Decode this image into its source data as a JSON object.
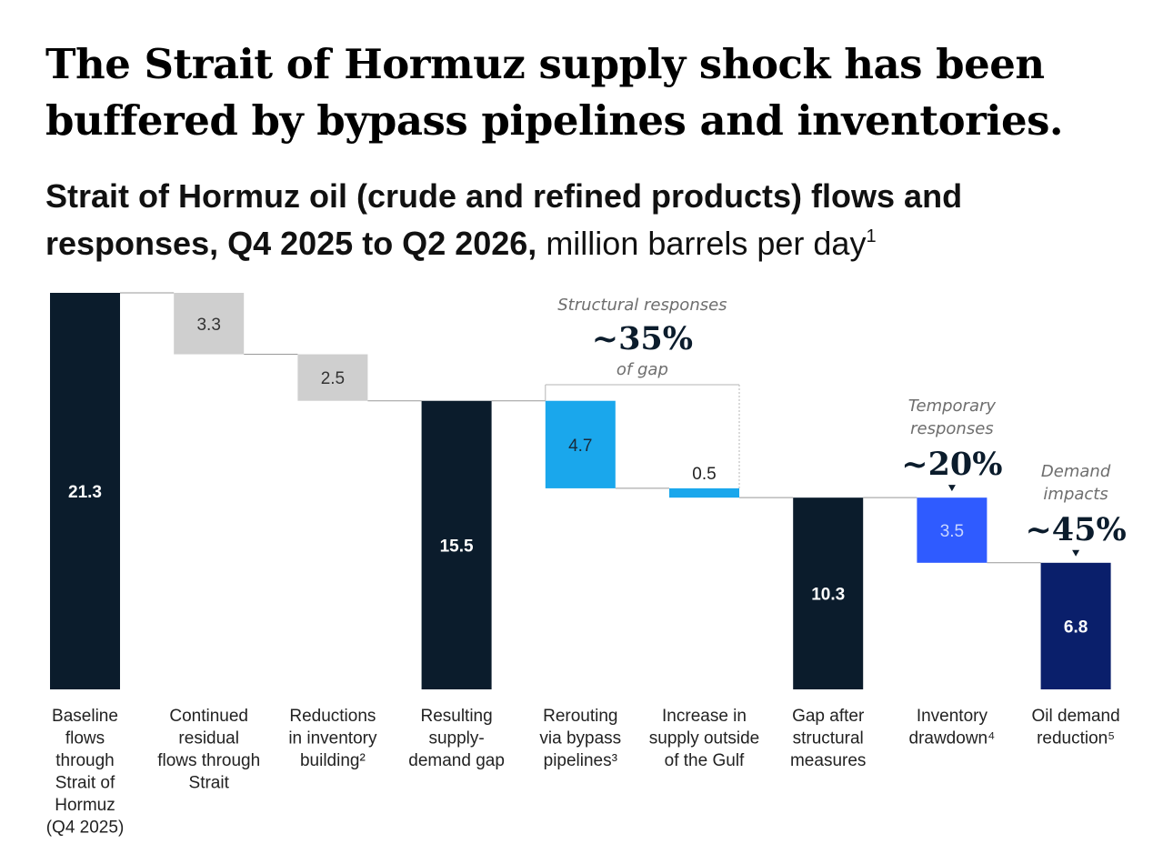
{
  "headline": "The Strait of Hormuz supply shock has been buffered by bypass pipelines and inventories.",
  "subtitle": {
    "bold": "Strait of Hormuz oil (crude and refined products) flows and responses, Q4 2025 to Q2 2026,",
    "unit": " million barrels per day",
    "footnote": "1"
  },
  "colors": {
    "total": "#0b1c2c",
    "reduction": "#cfcfcf",
    "structural": "#1aa7ec",
    "temporary": "#2f5bff",
    "demand": "#0a1f6b",
    "connector": "#999999"
  },
  "chart_data": {
    "type": "bar",
    "subtype": "waterfall",
    "categories": [
      [
        "Baseline",
        "flows",
        "through",
        "Strait of",
        "Hormuz",
        "(Q4 2025)"
      ],
      [
        "Continued",
        "residual",
        "flows through",
        "Strait"
      ],
      [
        "Reductions",
        "in inventory",
        "building²"
      ],
      [
        "Resulting",
        "supply-",
        "demand gap"
      ],
      [
        "Rerouting",
        "via bypass",
        "pipelines³"
      ],
      [
        "Increase in",
        "supply outside",
        "of the Gulf"
      ],
      [
        "Gap after",
        "structural",
        "measures"
      ],
      [
        "Inventory",
        "drawdown⁴"
      ],
      [
        "Oil demand",
        "reduction⁵"
      ]
    ],
    "bars": [
      {
        "label": "21.3",
        "value": 21.3,
        "start": 0,
        "end": 21.3,
        "kind": "total"
      },
      {
        "label": "3.3",
        "value": 3.3,
        "start": 18.0,
        "end": 21.3,
        "kind": "reduction"
      },
      {
        "label": "2.5",
        "value": 2.5,
        "start": 15.5,
        "end": 18.0,
        "kind": "reduction"
      },
      {
        "label": "15.5",
        "value": 15.5,
        "start": 0,
        "end": 15.5,
        "kind": "total"
      },
      {
        "label": "4.7",
        "value": 4.7,
        "start": 10.8,
        "end": 15.5,
        "kind": "structural"
      },
      {
        "label": "0.5",
        "value": 0.5,
        "start": 10.3,
        "end": 10.8,
        "kind": "structural"
      },
      {
        "label": "10.3",
        "value": 10.3,
        "start": 0,
        "end": 10.3,
        "kind": "total"
      },
      {
        "label": "3.5",
        "value": 3.5,
        "start": 6.8,
        "end": 10.3,
        "kind": "temporary"
      },
      {
        "label": "6.8",
        "value": 6.8,
        "start": 0,
        "end": 6.8,
        "kind": "demand"
      }
    ],
    "groups": [
      {
        "label": [
          "Structural responses"
        ],
        "pct": "~35%",
        "sub": "of gap",
        "bars": [
          4,
          5
        ]
      },
      {
        "label": [
          "Temporary",
          "responses"
        ],
        "pct": "~20%",
        "sub": "",
        "bars": [
          7
        ]
      },
      {
        "label": [
          "Demand",
          "impacts"
        ],
        "pct": "~45%",
        "sub": "",
        "bars": [
          8
        ]
      }
    ],
    "ylim": [
      0,
      21.3
    ],
    "grid": false,
    "legend": "none"
  }
}
